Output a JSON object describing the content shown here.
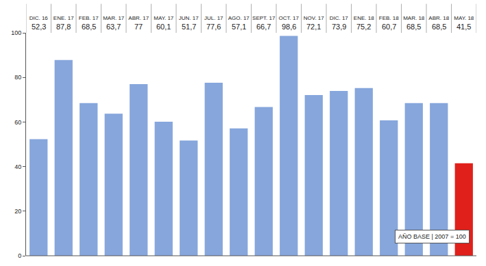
{
  "chart_data": {
    "type": "bar",
    "categories": [
      "DIC. 16",
      "ENE. 17",
      "FEB. 17",
      "MAR. 17",
      "ABR. 17",
      "MAY. 17",
      "JUN. 17",
      "JUL. 17",
      "AGO. 17",
      "SEPT. 17",
      "OCT. 17",
      "NOV. 17",
      "DIC. 17",
      "ENE. 18",
      "FEB. 18",
      "MAR. 18",
      "ABR. 18",
      "MAY. 18"
    ],
    "values": [
      52.3,
      87.8,
      68.5,
      63.7,
      77,
      60.1,
      51.7,
      77.6,
      57.1,
      66.7,
      98.6,
      72.1,
      73.9,
      75.2,
      60.7,
      68.5,
      68.5,
      41.5
    ],
    "value_labels": [
      "52,3",
      "87,8",
      "68,5",
      "63,7",
      "77",
      "60,1",
      "51,7",
      "77,6",
      "57,1",
      "66,7",
      "98,6",
      "72,1",
      "73,9",
      "75,2",
      "60,7",
      "68,5",
      "68,5",
      "41,5"
    ],
    "data_labels": true,
    "colors": [
      "#86a6dc",
      "#86a6dc",
      "#86a6dc",
      "#86a6dc",
      "#86a6dc",
      "#86a6dc",
      "#86a6dc",
      "#86a6dc",
      "#86a6dc",
      "#86a6dc",
      "#86a6dc",
      "#86a6dc",
      "#86a6dc",
      "#86a6dc",
      "#86a6dc",
      "#86a6dc",
      "#86a6dc",
      "#e0201b"
    ],
    "ylim": [
      0,
      100
    ],
    "yticks": [
      0,
      20,
      40,
      60,
      80,
      100
    ],
    "grid": false,
    "annotation": "AÑO BASE | 2007 = 100"
  }
}
